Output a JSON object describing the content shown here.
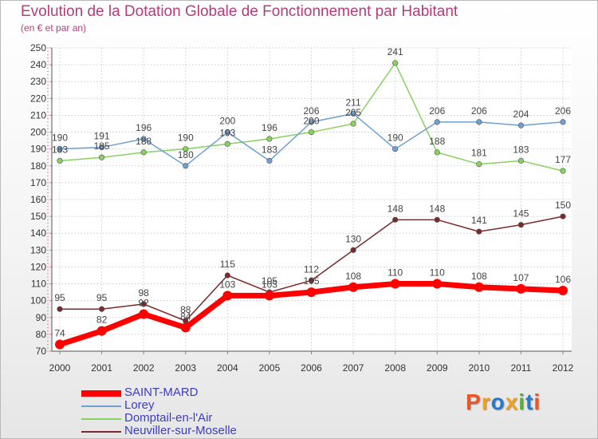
{
  "header": {
    "title": "Evolution de la Dotation Globale de Fonctionnement par Habitant",
    "subtitle": "(en € et par an)"
  },
  "logo": {
    "text": "Proxiti",
    "colors": [
      "#e8562a",
      "#f0a020",
      "#2a78c8",
      "#f0a020",
      "#58b030",
      "#2a78c8",
      "#e8562a"
    ]
  },
  "chart_data": {
    "type": "line",
    "x": [
      2000,
      2001,
      2002,
      2003,
      2004,
      2005,
      2006,
      2007,
      2008,
      2009,
      2010,
      2011,
      2012
    ],
    "ylim": [
      70,
      250
    ],
    "ytick_step": 10,
    "grid": true,
    "legend_position": "bottom-left",
    "series": [
      {
        "name": "SAINT-MARD",
        "color": "#ff0000",
        "values": [
          74,
          82,
          92,
          84,
          103,
          103,
          105,
          108,
          110,
          110,
          108,
          107,
          106
        ],
        "labels": [
          "74",
          "82",
          "92",
          "84",
          "103",
          "103",
          "105",
          "108",
          "110",
          "110",
          "108",
          "107",
          "106"
        ]
      },
      {
        "name": "Lorey",
        "color": "#6fa0d0",
        "values": [
          190,
          191,
          196,
          180,
          200,
          183,
          206,
          211,
          190,
          206,
          206,
          204,
          206
        ],
        "labels": [
          "190",
          "191",
          "196",
          "180",
          "200",
          "183",
          "206",
          "211",
          "190",
          "206",
          "206",
          "204",
          "206"
        ]
      },
      {
        "name": "Domptail-en-l'Air",
        "color": "#88d060",
        "values": [
          183,
          185,
          188,
          190,
          193,
          196,
          200,
          205,
          241,
          188,
          181,
          183,
          177
        ],
        "labels": [
          "183",
          "185",
          "188",
          "190",
          "193",
          "196",
          "200",
          "205",
          "241",
          "188",
          "181",
          "183",
          "177"
        ]
      },
      {
        "name": "Neuviller-sur-Moselle",
        "color": "#7a2a2a",
        "values": [
          95,
          95,
          98,
          88,
          115,
          105,
          112,
          130,
          148,
          148,
          141,
          145,
          150
        ],
        "labels": [
          "95",
          "95",
          "98",
          "88",
          "115",
          "105",
          "112",
          "130",
          "148",
          "148",
          "141",
          "145",
          "150"
        ]
      }
    ]
  }
}
